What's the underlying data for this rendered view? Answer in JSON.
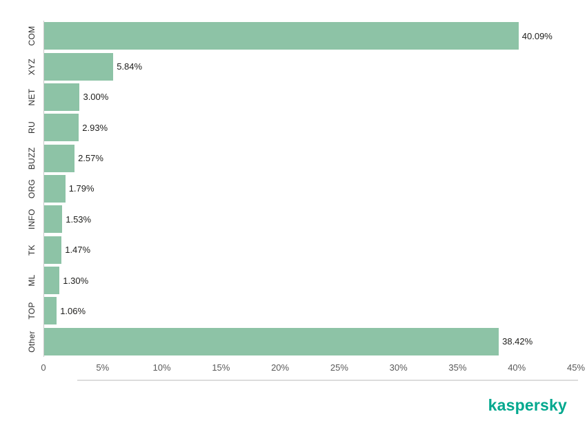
{
  "chart_data": {
    "type": "bar",
    "orientation": "horizontal",
    "title": "",
    "xlabel": "",
    "ylabel": "",
    "categories": [
      "COM",
      "XYZ",
      "NET",
      "RU",
      "BUZZ",
      "ORG",
      "INFO",
      "TK",
      "ML",
      "TOP",
      "Other"
    ],
    "values": [
      40.09,
      5.84,
      3.0,
      2.93,
      2.57,
      1.79,
      1.53,
      1.47,
      1.3,
      1.06,
      38.42
    ],
    "value_labels": [
      "40.09%",
      "5.84%",
      "3.00%",
      "2.93%",
      "2.57%",
      "1.79%",
      "1.53%",
      "1.47%",
      "1.30%",
      "1.06%",
      "38.42%"
    ],
    "x_tick_values": [
      0,
      5,
      10,
      15,
      20,
      25,
      30,
      35,
      40,
      45
    ],
    "x_tick_labels": [
      "0",
      "5%",
      "10%",
      "15%",
      "20%",
      "25%",
      "30%",
      "35%",
      "40%",
      "45%"
    ],
    "xlim": [
      0,
      45
    ],
    "grid": false,
    "legend": "none",
    "bar_color": "#8dc3a6"
  },
  "branding": {
    "logo_text": "kaspersky",
    "logo_color": "#00a88e"
  }
}
